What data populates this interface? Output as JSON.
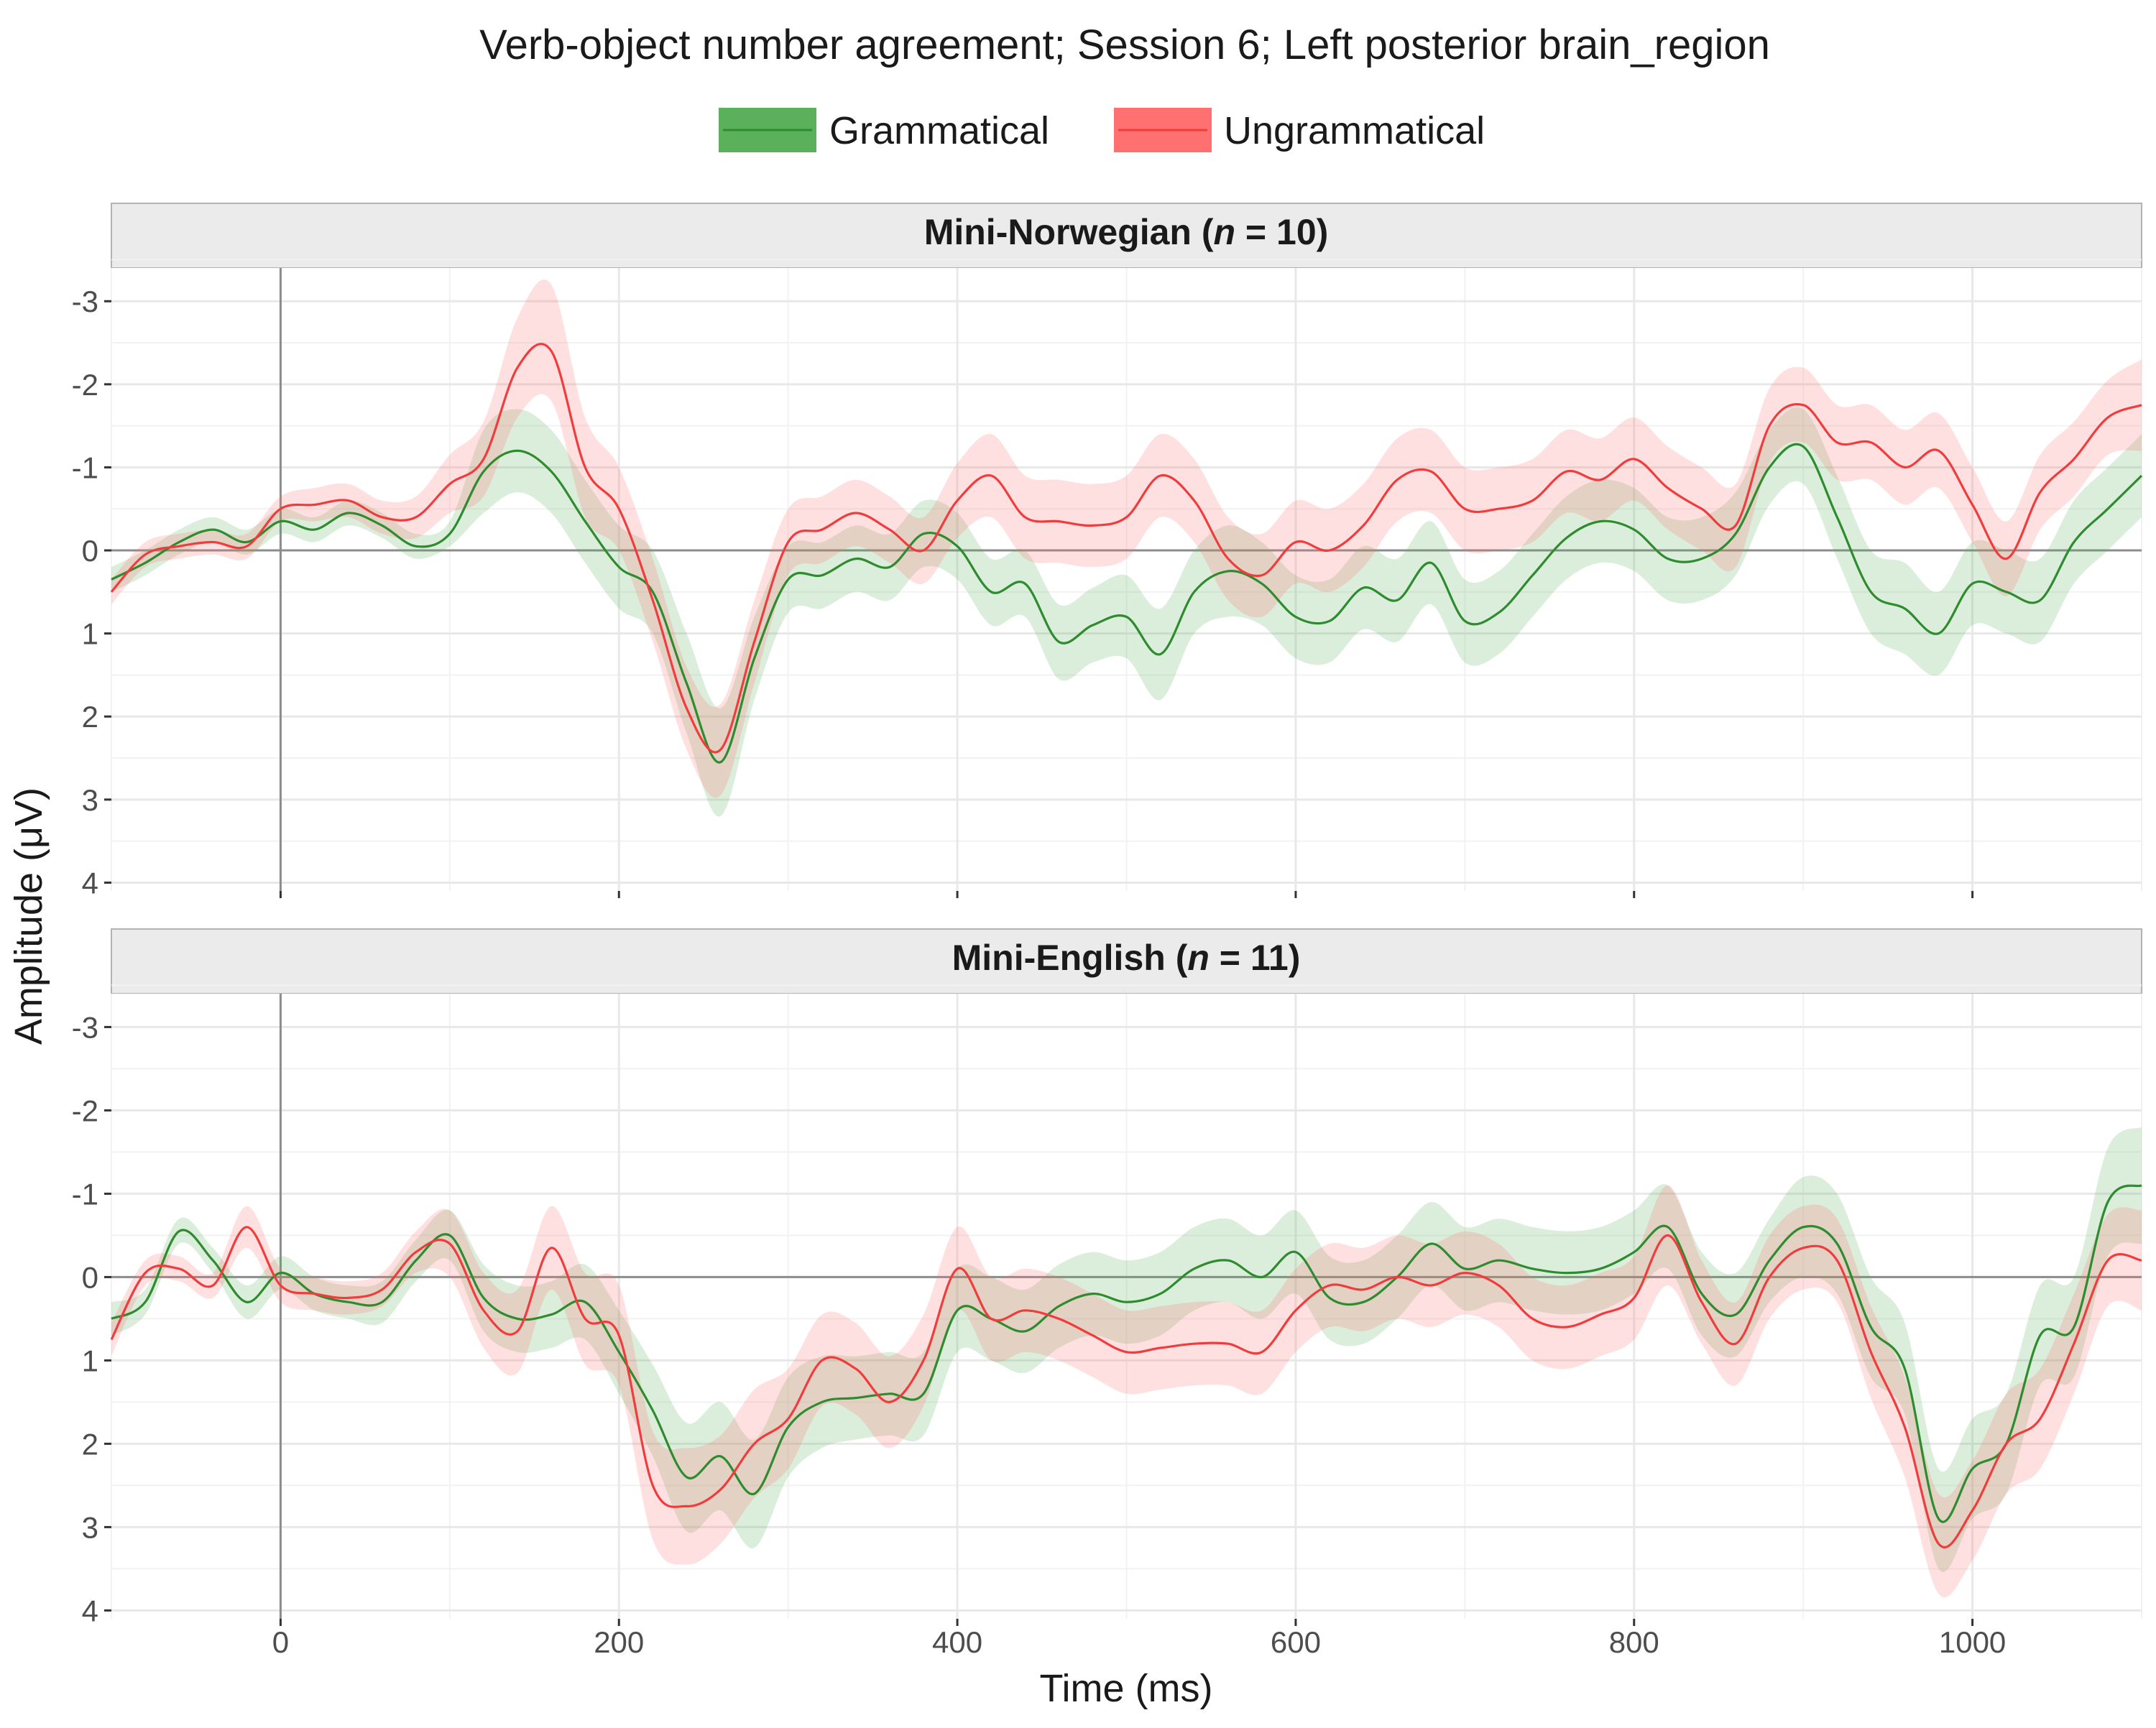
{
  "chart_data": {
    "type": "line",
    "title": "Verb-object number agreement; Session 6; Left posterior brain_region",
    "xlabel": "Time (ms)",
    "ylabel": "Amplitude (μV)",
    "x_ticks": [
      0,
      200,
      400,
      600,
      800,
      1000
    ],
    "y_ticks": [
      -3,
      -2,
      -1,
      0,
      1,
      2,
      3,
      4
    ],
    "xlim": [
      -100,
      1100
    ],
    "ylim": [
      -3.4,
      4.1
    ],
    "y_reversed": true,
    "grid": true,
    "legend_position": "top",
    "legend": [
      {
        "name": "Grammatical",
        "color": "#2E8B2E",
        "ribbon_color": "#5BB05B"
      },
      {
        "name": "Ungrammatical",
        "color": "#F03C3C",
        "ribbon_color": "#FF7070"
      }
    ],
    "x": [
      -100,
      -80,
      -60,
      -40,
      -20,
      0,
      20,
      40,
      60,
      80,
      100,
      120,
      140,
      160,
      180,
      200,
      220,
      240,
      260,
      280,
      300,
      320,
      340,
      360,
      380,
      400,
      420,
      440,
      460,
      480,
      500,
      520,
      540,
      560,
      580,
      600,
      620,
      640,
      660,
      680,
      700,
      720,
      740,
      760,
      780,
      800,
      820,
      840,
      860,
      880,
      900,
      920,
      940,
      960,
      980,
      1000,
      1020,
      1040,
      1060,
      1080,
      1100
    ],
    "panels": [
      {
        "title_main": "Mini-Norwegian (",
        "title_n": "n",
        "title_rest": " = 10)",
        "series": [
          {
            "name": "Grammatical",
            "values": [
              0.35,
              0.15,
              -0.1,
              -0.25,
              -0.1,
              -0.35,
              -0.25,
              -0.45,
              -0.3,
              -0.05,
              -0.2,
              -0.95,
              -1.2,
              -0.95,
              -0.35,
              0.2,
              0.5,
              1.6,
              2.55,
              1.3,
              0.35,
              0.3,
              0.1,
              0.2,
              -0.2,
              -0.05,
              0.5,
              0.4,
              1.1,
              0.9,
              0.8,
              1.25,
              0.5,
              0.25,
              0.4,
              0.8,
              0.85,
              0.45,
              0.6,
              0.15,
              0.85,
              0.75,
              0.3,
              -0.15,
              -0.35,
              -0.25,
              0.1,
              0.1,
              -0.2,
              -1.0,
              -1.25,
              -0.4,
              0.5,
              0.7,
              1.0,
              0.4,
              0.5,
              0.6,
              -0.1,
              -0.5,
              -0.9
            ],
            "lower": [
              0.2,
              0.0,
              -0.25,
              -0.4,
              -0.25,
              -0.5,
              -0.4,
              -0.6,
              -0.45,
              -0.2,
              -0.35,
              -1.45,
              -1.7,
              -1.45,
              -0.85,
              -0.3,
              0.0,
              1.0,
              1.9,
              0.8,
              -0.05,
              -0.1,
              -0.3,
              -0.2,
              -0.6,
              -0.45,
              0.1,
              0.0,
              0.65,
              0.45,
              0.3,
              0.7,
              0.0,
              -0.3,
              -0.1,
              0.3,
              0.35,
              -0.05,
              0.1,
              -0.35,
              0.35,
              0.25,
              -0.2,
              -0.65,
              -0.85,
              -0.75,
              -0.4,
              -0.4,
              -0.7,
              -1.45,
              -1.7,
              -0.9,
              0.0,
              0.15,
              0.5,
              -0.1,
              0.0,
              0.1,
              -0.6,
              -1.0,
              -1.4
            ],
            "upper": [
              0.5,
              0.3,
              0.05,
              -0.1,
              0.05,
              -0.2,
              -0.1,
              -0.3,
              -0.15,
              0.1,
              -0.05,
              -0.45,
              -0.7,
              -0.45,
              0.15,
              0.7,
              1.0,
              2.2,
              3.2,
              1.8,
              0.75,
              0.7,
              0.5,
              0.6,
              0.2,
              0.35,
              0.9,
              0.8,
              1.55,
              1.35,
              1.3,
              1.8,
              1.0,
              0.8,
              0.9,
              1.3,
              1.35,
              0.95,
              1.1,
              0.65,
              1.35,
              1.25,
              0.8,
              0.35,
              0.15,
              0.25,
              0.6,
              0.6,
              0.3,
              -0.55,
              -0.8,
              0.1,
              1.0,
              1.25,
              1.5,
              0.9,
              1.0,
              1.1,
              0.4,
              0.0,
              -0.4
            ]
          },
          {
            "name": "Ungrammatical",
            "values": [
              0.5,
              0.05,
              -0.05,
              -0.1,
              -0.05,
              -0.5,
              -0.55,
              -0.6,
              -0.4,
              -0.4,
              -0.8,
              -1.1,
              -2.2,
              -2.4,
              -1.0,
              -0.5,
              0.6,
              1.9,
              2.4,
              1.1,
              -0.1,
              -0.25,
              -0.45,
              -0.25,
              0.0,
              -0.6,
              -0.9,
              -0.4,
              -0.35,
              -0.3,
              -0.4,
              -0.9,
              -0.6,
              0.1,
              0.3,
              -0.1,
              0.0,
              -0.3,
              -0.85,
              -0.95,
              -0.5,
              -0.5,
              -0.6,
              -0.95,
              -0.85,
              -1.1,
              -0.75,
              -0.5,
              -0.3,
              -1.5,
              -1.75,
              -1.3,
              -1.3,
              -1.0,
              -1.2,
              -0.55,
              0.1,
              -0.7,
              -1.1,
              -1.6,
              -1.75
            ],
            "lower": [
              0.35,
              -0.1,
              -0.2,
              -0.25,
              -0.2,
              -0.65,
              -0.75,
              -0.8,
              -0.6,
              -0.65,
              -1.15,
              -1.55,
              -2.8,
              -3.2,
              -1.6,
              -1.0,
              0.1,
              1.4,
              1.85,
              0.6,
              -0.5,
              -0.65,
              -0.85,
              -0.65,
              -0.4,
              -1.05,
              -1.4,
              -0.9,
              -0.85,
              -0.8,
              -0.9,
              -1.4,
              -1.1,
              -0.4,
              -0.2,
              -0.6,
              -0.5,
              -0.8,
              -1.35,
              -1.45,
              -1.0,
              -1.0,
              -1.1,
              -1.45,
              -1.35,
              -1.6,
              -1.25,
              -1.0,
              -0.8,
              -1.95,
              -2.2,
              -1.75,
              -1.75,
              -1.45,
              -1.65,
              -1.0,
              -0.35,
              -1.15,
              -1.55,
              -2.05,
              -2.3
            ],
            "upper": [
              0.65,
              0.2,
              0.1,
              0.05,
              0.1,
              -0.35,
              -0.35,
              -0.4,
              -0.2,
              -0.15,
              -0.45,
              -0.65,
              -1.6,
              -1.8,
              -0.4,
              0.0,
              1.1,
              2.4,
              2.95,
              1.6,
              0.3,
              0.15,
              -0.05,
              0.15,
              0.4,
              -0.15,
              -0.4,
              0.1,
              0.15,
              0.2,
              0.1,
              -0.4,
              -0.1,
              0.6,
              0.8,
              0.4,
              0.5,
              0.2,
              -0.35,
              -0.45,
              0.0,
              0.0,
              -0.1,
              -0.45,
              -0.35,
              -0.6,
              -0.25,
              0.0,
              0.2,
              -1.05,
              -1.3,
              -0.85,
              -0.85,
              -0.55,
              -0.75,
              -0.1,
              0.55,
              -0.25,
              -0.65,
              -1.15,
              -1.2
            ]
          }
        ]
      },
      {
        "title_main": "Mini-English (",
        "title_n": "n",
        "title_rest": " = 11)",
        "series": [
          {
            "name": "Grammatical",
            "values": [
              0.5,
              0.3,
              -0.55,
              -0.2,
              0.3,
              -0.05,
              0.2,
              0.3,
              0.3,
              -0.2,
              -0.5,
              0.25,
              0.5,
              0.45,
              0.3,
              0.9,
              1.6,
              2.4,
              2.15,
              2.6,
              1.8,
              1.5,
              1.45,
              1.4,
              1.4,
              0.4,
              0.5,
              0.65,
              0.35,
              0.2,
              0.3,
              0.2,
              -0.1,
              -0.2,
              0.0,
              -0.3,
              0.25,
              0.3,
              0.0,
              -0.4,
              -0.1,
              -0.2,
              -0.1,
              -0.05,
              -0.1,
              -0.3,
              -0.6,
              0.2,
              0.45,
              -0.2,
              -0.6,
              -0.4,
              0.6,
              1.1,
              2.9,
              2.3,
              2.0,
              0.7,
              0.6,
              -0.9,
              -1.1
            ],
            "lower": [
              0.3,
              0.15,
              -0.7,
              -0.35,
              0.1,
              -0.25,
              0.0,
              0.1,
              0.05,
              -0.45,
              -0.8,
              -0.15,
              0.1,
              0.05,
              -0.15,
              0.4,
              1.05,
              1.75,
              1.5,
              1.95,
              1.2,
              0.95,
              0.95,
              0.9,
              0.9,
              -0.1,
              0.0,
              0.15,
              -0.15,
              -0.3,
              -0.2,
              -0.3,
              -0.6,
              -0.7,
              -0.5,
              -0.8,
              -0.25,
              -0.2,
              -0.5,
              -0.9,
              -0.6,
              -0.7,
              -0.6,
              -0.55,
              -0.6,
              -0.8,
              -1.1,
              -0.3,
              -0.05,
              -0.7,
              -1.2,
              -1.0,
              0.0,
              0.55,
              2.3,
              1.7,
              1.4,
              0.1,
              0.0,
              -1.55,
              -1.8
            ],
            "upper": [
              0.7,
              0.45,
              -0.4,
              -0.05,
              0.5,
              0.15,
              0.4,
              0.5,
              0.55,
              0.05,
              -0.2,
              0.65,
              0.9,
              0.85,
              0.75,
              1.4,
              2.15,
              3.05,
              2.8,
              3.25,
              2.4,
              2.05,
              1.95,
              1.9,
              1.9,
              0.9,
              1.0,
              1.15,
              0.85,
              0.7,
              0.8,
              0.7,
              0.4,
              0.3,
              0.5,
              0.2,
              0.75,
              0.8,
              0.5,
              0.1,
              0.4,
              0.3,
              0.4,
              0.45,
              0.4,
              0.2,
              -0.1,
              0.7,
              0.95,
              0.3,
              0.0,
              0.2,
              1.2,
              1.65,
              3.5,
              2.9,
              2.6,
              1.3,
              1.2,
              -0.25,
              -0.4
            ]
          },
          {
            "name": "Ungrammatical",
            "values": [
              0.75,
              -0.05,
              -0.1,
              0.1,
              -0.6,
              0.1,
              0.2,
              0.25,
              0.15,
              -0.3,
              -0.4,
              0.4,
              0.65,
              -0.35,
              0.5,
              0.7,
              2.5,
              2.75,
              2.55,
              2.0,
              1.7,
              1.0,
              1.1,
              1.5,
              1.0,
              -0.1,
              0.5,
              0.4,
              0.5,
              0.7,
              0.9,
              0.85,
              0.8,
              0.8,
              0.9,
              0.4,
              0.1,
              0.15,
              0.0,
              0.1,
              -0.05,
              0.1,
              0.5,
              0.6,
              0.45,
              0.25,
              -0.5,
              0.3,
              0.8,
              0.0,
              -0.35,
              -0.2,
              0.9,
              1.8,
              3.2,
              2.8,
              2.0,
              1.7,
              0.8,
              -0.2,
              -0.2
            ],
            "lower": [
              0.55,
              -0.2,
              -0.25,
              -0.05,
              -0.85,
              -0.1,
              0.0,
              0.05,
              -0.05,
              -0.55,
              -0.8,
              -0.05,
              0.15,
              -0.85,
              -0.05,
              0.1,
              1.85,
              2.05,
              1.9,
              1.35,
              1.1,
              0.45,
              0.55,
              0.95,
              0.45,
              -0.6,
              0.0,
              -0.1,
              0.0,
              0.2,
              0.4,
              0.35,
              0.3,
              0.3,
              0.4,
              -0.1,
              -0.4,
              -0.35,
              -0.5,
              -0.4,
              -0.55,
              -0.4,
              0.0,
              0.1,
              -0.05,
              -0.25,
              -1.1,
              -0.2,
              0.3,
              -0.5,
              -0.85,
              -0.7,
              0.35,
              1.2,
              2.6,
              2.2,
              1.4,
              1.1,
              0.2,
              -0.75,
              -0.8
            ],
            "upper": [
              0.95,
              0.1,
              0.05,
              0.25,
              -0.35,
              0.3,
              0.4,
              0.45,
              0.35,
              -0.05,
              0.0,
              0.85,
              1.15,
              0.15,
              1.05,
              1.3,
              3.15,
              3.45,
              3.2,
              2.65,
              2.3,
              1.55,
              1.65,
              2.05,
              1.55,
              0.4,
              1.0,
              0.9,
              1.0,
              1.2,
              1.4,
              1.35,
              1.3,
              1.3,
              1.4,
              0.9,
              0.6,
              0.65,
              0.5,
              0.6,
              0.45,
              0.6,
              1.0,
              1.1,
              0.95,
              0.75,
              0.1,
              0.8,
              1.3,
              0.5,
              0.15,
              0.3,
              1.45,
              2.4,
              3.8,
              3.4,
              2.6,
              2.3,
              1.4,
              0.35,
              0.4
            ]
          }
        ]
      }
    ]
  }
}
